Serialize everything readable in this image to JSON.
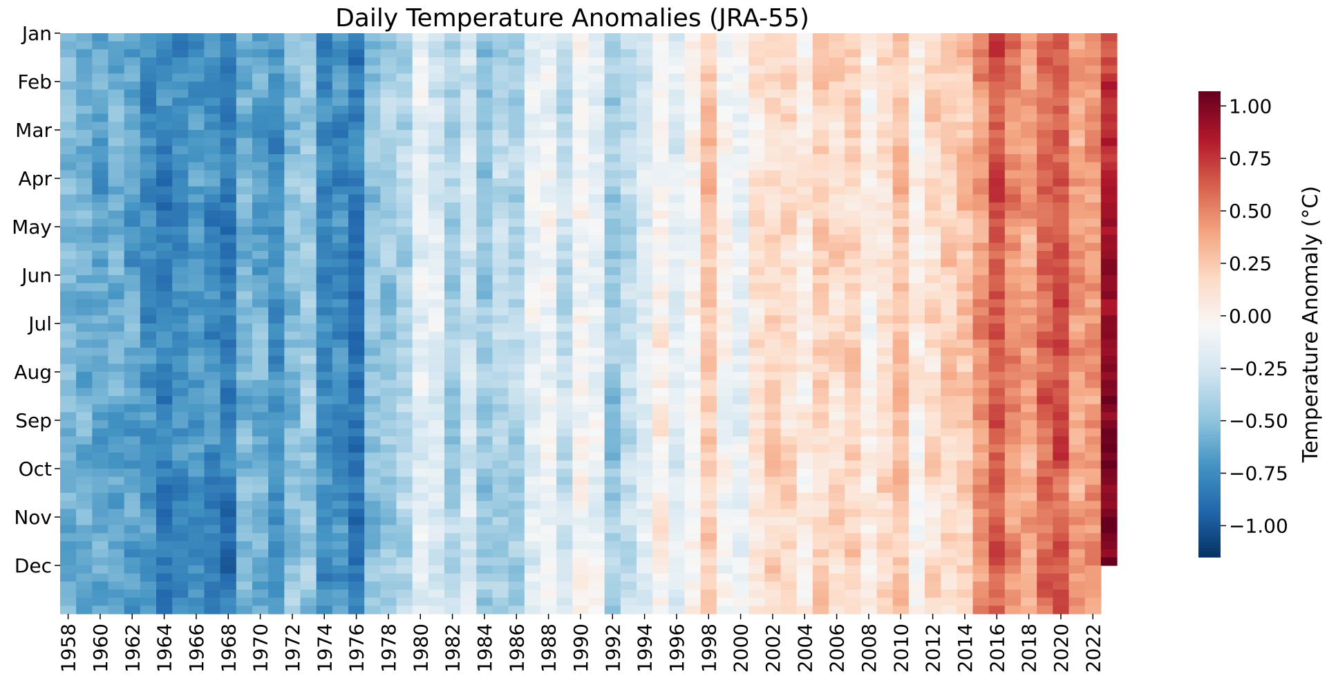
{
  "chart_data": {
    "type": "heatmap",
    "title": "Daily Temperature Anomalies (JRA-55)",
    "x_label": "",
    "y_label": "",
    "x_range": [
      1958,
      2023
    ],
    "x_tick_labels": [
      "1958",
      "1960",
      "1962",
      "1964",
      "1966",
      "1968",
      "1970",
      "1972",
      "1974",
      "1976",
      "1978",
      "1980",
      "1982",
      "1984",
      "1986",
      "1988",
      "1990",
      "1992",
      "1994",
      "1996",
      "1998",
      "2000",
      "2002",
      "2004",
      "2006",
      "2008",
      "2010",
      "2012",
      "2014",
      "2016",
      "2018",
      "2020",
      "2022"
    ],
    "y_tick_labels": [
      "Jan",
      "Feb",
      "Mar",
      "Apr",
      "May",
      "Jun",
      "Jul",
      "Aug",
      "Sep",
      "Oct",
      "Nov",
      "Dec"
    ],
    "colorbar": {
      "label": "Temperature Anomaly (°C)",
      "range": [
        -1.15,
        1.07
      ],
      "ticks": [
        1.0,
        0.75,
        0.5,
        0.25,
        0.0,
        -0.25,
        -0.5,
        -0.75,
        -1.0
      ],
      "tick_labels": [
        "1.00",
        "0.75",
        "0.50",
        "0.25",
        "0.00",
        "−0.25",
        "−0.50",
        "−0.75",
        "−1.00"
      ],
      "colormap": "RdBu_r",
      "colors": [
        "#053061",
        "#2166ac",
        "#4393c3",
        "#92c5de",
        "#d1e5f0",
        "#f7f7f7",
        "#fddbc7",
        "#f4a582",
        "#d6604d",
        "#b2182b",
        "#67001f"
      ]
    },
    "annual_mean_anomaly": {
      "1958": -0.55,
      "1959": -0.6,
      "1960": -0.62,
      "1961": -0.6,
      "1962": -0.65,
      "1963": -0.7,
      "1964": -0.8,
      "1965": -0.75,
      "1966": -0.72,
      "1967": -0.75,
      "1968": -0.8,
      "1969": -0.55,
      "1970": -0.6,
      "1971": -0.72,
      "1972": -0.5,
      "1973": -0.45,
      "1974": -0.75,
      "1975": -0.7,
      "1976": -0.85,
      "1977": -0.5,
      "1978": -0.45,
      "1979": -0.35,
      "1980": -0.15,
      "1981": -0.2,
      "1982": -0.4,
      "1983": -0.25,
      "1984": -0.45,
      "1985": -0.35,
      "1986": -0.4,
      "1987": -0.15,
      "1988": -0.1,
      "1989": -0.3,
      "1990": -0.05,
      "1991": -0.15,
      "1992": -0.45,
      "1993": -0.35,
      "1994": -0.2,
      "1995": 0.0,
      "1996": -0.2,
      "1997": 0.0,
      "1998": 0.25,
      "1999": -0.05,
      "2000": -0.1,
      "2001": 0.1,
      "2002": 0.2,
      "2003": 0.15,
      "2004": 0.05,
      "2005": 0.2,
      "2006": 0.15,
      "2007": 0.2,
      "2008": 0.0,
      "2009": 0.15,
      "2010": 0.3,
      "2011": 0.05,
      "2012": 0.15,
      "2013": 0.2,
      "2014": 0.25,
      "2015": 0.45,
      "2016": 0.65,
      "2017": 0.5,
      "2018": 0.4,
      "2019": 0.6,
      "2020": 0.65,
      "2021": 0.4,
      "2022": 0.45,
      "2023": 0.75
    },
    "last_year_data_ends": "Nov"
  }
}
